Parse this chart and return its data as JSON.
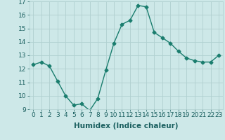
{
  "x": [
    0,
    1,
    2,
    3,
    4,
    5,
    6,
    7,
    8,
    9,
    10,
    11,
    12,
    13,
    14,
    15,
    16,
    17,
    18,
    19,
    20,
    21,
    22,
    23
  ],
  "y": [
    12.3,
    12.5,
    12.2,
    11.1,
    10.0,
    9.3,
    9.4,
    8.9,
    9.8,
    11.9,
    13.9,
    15.3,
    15.6,
    16.7,
    16.6,
    14.7,
    14.3,
    13.9,
    13.3,
    12.8,
    12.6,
    12.5,
    12.5,
    13.0
  ],
  "line_color": "#1a7d6e",
  "marker": "D",
  "marker_size": 2.5,
  "line_width": 1.0,
  "bg_color": "#cde8e8",
  "grid_color": "#b0d0d0",
  "xlabel": "Humidex (Indice chaleur)",
  "xlabel_fontsize": 7.5,
  "ylim": [
    9,
    17
  ],
  "xlim": [
    -0.5,
    23.5
  ],
  "yticks": [
    9,
    10,
    11,
    12,
    13,
    14,
    15,
    16,
    17
  ],
  "xtick_labels": [
    "0",
    "1",
    "2",
    "3",
    "4",
    "5",
    "6",
    "7",
    "8",
    "9",
    "10",
    "11",
    "12",
    "13",
    "14",
    "15",
    "16",
    "17",
    "18",
    "19",
    "20",
    "21",
    "22",
    "23"
  ],
  "tick_fontsize": 6.5
}
